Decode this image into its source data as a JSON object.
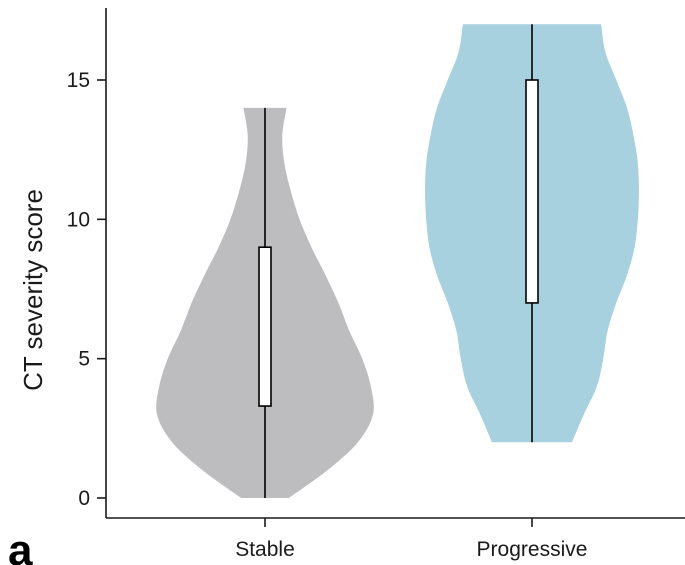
{
  "panel_label": "a",
  "chart_data": {
    "type": "violin",
    "title": "",
    "xlabel": "",
    "ylabel": "CT severity score",
    "ylim": [
      0,
      17
    ],
    "yticks": [
      0,
      5,
      10,
      15
    ],
    "categories": [
      "Stable",
      "Progressive"
    ],
    "series": [
      {
        "category": "Stable",
        "color": "#bdbdbf",
        "min": 0,
        "max": 14,
        "q1": 3.3,
        "q3": 9,
        "density": [
          {
            "y": 0,
            "w": 0.22
          },
          {
            "y": 1,
            "w": 0.58
          },
          {
            "y": 2,
            "w": 0.86
          },
          {
            "y": 3,
            "w": 1.0
          },
          {
            "y": 4,
            "w": 0.98
          },
          {
            "y": 5,
            "w": 0.9
          },
          {
            "y": 6,
            "w": 0.78
          },
          {
            "y": 7,
            "w": 0.68
          },
          {
            "y": 8,
            "w": 0.56
          },
          {
            "y": 9,
            "w": 0.43
          },
          {
            "y": 10,
            "w": 0.32
          },
          {
            "y": 11,
            "w": 0.24
          },
          {
            "y": 12,
            "w": 0.18
          },
          {
            "y": 13,
            "w": 0.16
          },
          {
            "y": 14,
            "w": 0.2
          }
        ]
      },
      {
        "category": "Progressive",
        "color": "#a7d1df",
        "min": 2,
        "max": 17,
        "q1": 7,
        "q3": 15,
        "density": [
          {
            "y": 2,
            "w": 0.37
          },
          {
            "y": 3,
            "w": 0.48
          },
          {
            "y": 4,
            "w": 0.6
          },
          {
            "y": 5,
            "w": 0.66
          },
          {
            "y": 6,
            "w": 0.7
          },
          {
            "y": 7,
            "w": 0.78
          },
          {
            "y": 8,
            "w": 0.88
          },
          {
            "y": 9,
            "w": 0.95
          },
          {
            "y": 10,
            "w": 0.98
          },
          {
            "y": 11,
            "w": 0.99
          },
          {
            "y": 12,
            "w": 0.98
          },
          {
            "y": 13,
            "w": 0.94
          },
          {
            "y": 14,
            "w": 0.88
          },
          {
            "y": 15,
            "w": 0.78
          },
          {
            "y": 16,
            "w": 0.68
          },
          {
            "y": 17,
            "w": 0.64
          }
        ]
      }
    ]
  }
}
